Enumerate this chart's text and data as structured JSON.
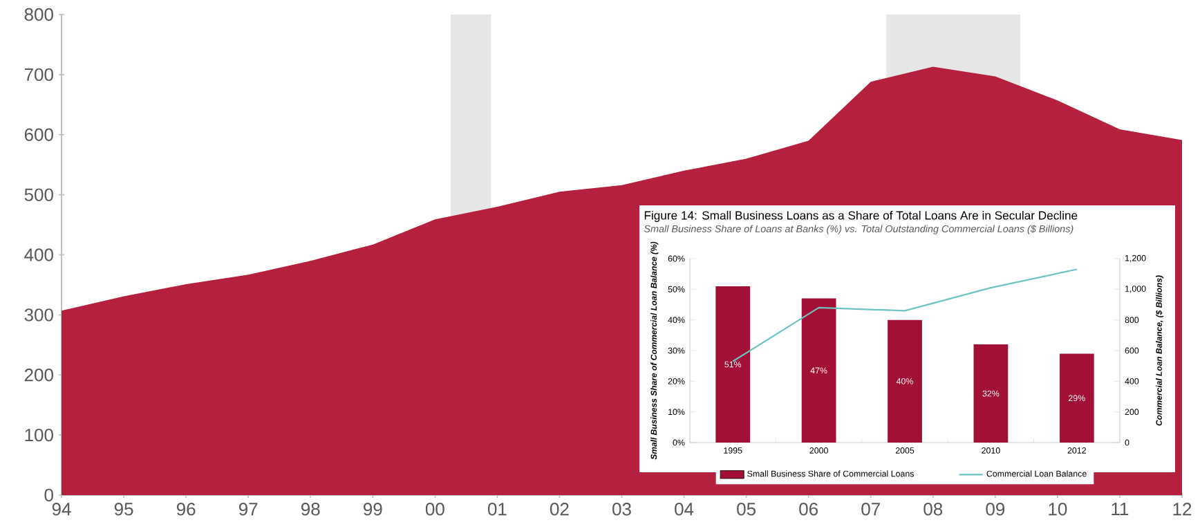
{
  "chart_data": [
    {
      "type": "area",
      "x": [
        1994,
        1995,
        1996,
        1997,
        1998,
        1999,
        2000,
        2001,
        2002,
        2003,
        2004,
        2005,
        2006,
        2007,
        2008,
        2009,
        2010,
        2011,
        2012
      ],
      "values": [
        307,
        331,
        351,
        367,
        390,
        417,
        459,
        480,
        505,
        516,
        540,
        560,
        590,
        688,
        713,
        697,
        657,
        609,
        591
      ],
      "color": "#b5203f",
      "xlim": [
        1994,
        2012
      ],
      "ylim": [
        0,
        800
      ],
      "xticks": [
        {
          "value": 1994,
          "label": "94"
        },
        {
          "value": 1995,
          "label": "95"
        },
        {
          "value": 1996,
          "label": "96"
        },
        {
          "value": 1997,
          "label": "97"
        },
        {
          "value": 1998,
          "label": "98"
        },
        {
          "value": 1999,
          "label": "99"
        },
        {
          "value": 2000,
          "label": "00"
        },
        {
          "value": 2001,
          "label": "01"
        },
        {
          "value": 2002,
          "label": "02"
        },
        {
          "value": 2003,
          "label": "03"
        },
        {
          "value": 2004,
          "label": "04"
        },
        {
          "value": 2005,
          "label": "05"
        },
        {
          "value": 2006,
          "label": "06"
        },
        {
          "value": 2007,
          "label": "07"
        },
        {
          "value": 2008,
          "label": "08"
        },
        {
          "value": 2009,
          "label": "09"
        },
        {
          "value": 2010,
          "label": "10"
        },
        {
          "value": 2011,
          "label": "11"
        },
        {
          "value": 2012,
          "label": "12"
        }
      ],
      "yticks": [
        0,
        100,
        200,
        300,
        400,
        500,
        600,
        700,
        800
      ],
      "bands": [
        {
          "axis": "x",
          "from": 2000.25,
          "to": 2000.9,
          "color": "#e6e6e6"
        },
        {
          "axis": "x",
          "from": 2007.25,
          "to": 2009.4,
          "color": "#e6e6e6"
        }
      ]
    },
    {
      "type": "bar",
      "title": "Figure 14: Small Business Loans as a Share of Total Loans Are in Secular Decline",
      "subtitle": "Small Business Share of Loans at Banks (%) vs. Total Outstanding Commercial Loans ($ Billions)",
      "ylabel": "Small Business Share of Commercial Loan Balance (%)",
      "y2label": "Commercial Loan Balance, ($ Billions)",
      "categories": [
        "1995",
        "2000",
        "2005",
        "2010",
        "2012"
      ],
      "series": [
        {
          "name": "Small Business Share of Commercial Loans",
          "color": "#a31035",
          "values": [
            51,
            47,
            40,
            32,
            29
          ],
          "value_labels": [
            "51%",
            "47%",
            "40%",
            "32%",
            "29%"
          ]
        },
        {
          "name": "Commercial Loan Balance",
          "type": "line",
          "axis": "y2",
          "color": "#6cc3c0",
          "values": [
            530,
            880,
            860,
            1010,
            1130
          ]
        }
      ],
      "ylim": [
        0,
        60
      ],
      "yticks": [
        {
          "value": 0,
          "label": "0%"
        },
        {
          "value": 10,
          "label": "10%"
        },
        {
          "value": 20,
          "label": "20%"
        },
        {
          "value": 30,
          "label": "30%"
        },
        {
          "value": 40,
          "label": "40%"
        },
        {
          "value": 50,
          "label": "50%"
        },
        {
          "value": 60,
          "label": "60%"
        }
      ],
      "y2lim": [
        0,
        1200
      ],
      "y2ticks": [
        0,
        200,
        400,
        600,
        800,
        {
          "value": 1000,
          "label": "1,000"
        },
        {
          "value": 1200,
          "label": "1,200"
        }
      ],
      "legend": "bottom"
    }
  ]
}
